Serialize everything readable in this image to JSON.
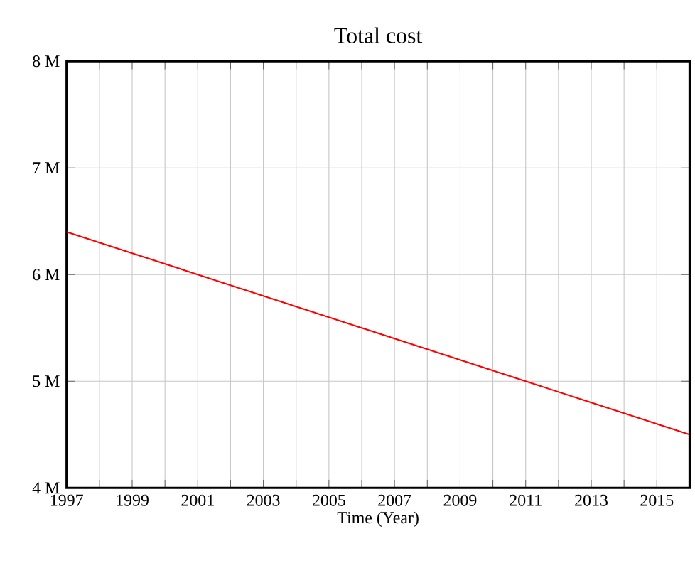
{
  "chart_data": {
    "type": "line",
    "title": "Total cost",
    "xlabel": "Time (Year)",
    "x": [
      1997,
      2001,
      2005,
      2009,
      2013,
      2016
    ],
    "series": [
      {
        "color": "#ff0000",
        "values": [
          6400000,
          6000000,
          5600000,
          5200000,
          4800000,
          4500000
        ]
      }
    ],
    "xlim": [
      1997,
      2016
    ],
    "xticks": [
      1997,
      {
        "value": 1998,
        "label": null
      },
      1999,
      {
        "value": 2000,
        "label": null
      },
      2001,
      {
        "value": 2002,
        "label": null
      },
      2003,
      {
        "value": 2004,
        "label": null
      },
      2005,
      {
        "value": 2006,
        "label": null
      },
      2007,
      {
        "value": 2008,
        "label": null
      },
      2009,
      {
        "value": 2010,
        "label": null
      },
      2011,
      {
        "value": 2012,
        "label": null
      },
      2013,
      {
        "value": 2014,
        "label": null
      },
      2015,
      {
        "value": 2016,
        "label": null
      }
    ],
    "ylim": [
      4000000,
      8000000
    ],
    "yticks": [
      {
        "value": 4000000,
        "label": "4 M"
      },
      {
        "value": 5000000,
        "label": "5 M"
      },
      {
        "value": 6000000,
        "label": "6 M"
      },
      {
        "value": 7000000,
        "label": "7 M"
      },
      {
        "value": 8000000,
        "label": "8 M"
      }
    ],
    "grid": true,
    "marker": "none",
    "line_style": "solid"
  }
}
